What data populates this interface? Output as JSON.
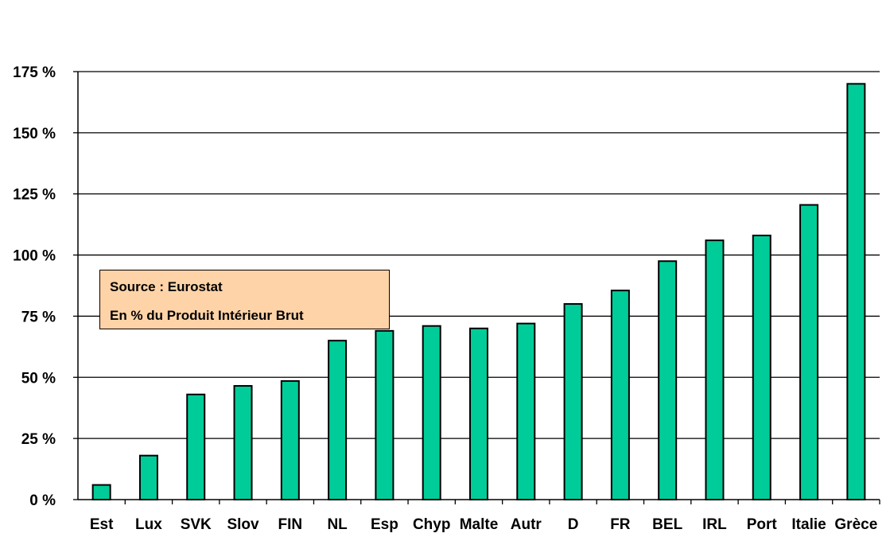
{
  "chart_data": {
    "type": "bar",
    "categories": [
      "Est",
      "Lux",
      "SVK",
      "Slov",
      "FIN",
      "NL",
      "Esp",
      "Chyp",
      "Malte",
      "Autr",
      "D",
      "FR",
      "BEL",
      "IRL",
      "Port",
      "Italie",
      "Grèce"
    ],
    "values": [
      6,
      18,
      43,
      46.5,
      48.5,
      65,
      69,
      71,
      70,
      72,
      80,
      85.5,
      97.5,
      106,
      108,
      120.5,
      170
    ],
    "ylim": [
      0,
      175
    ],
    "yticks": [
      0,
      25,
      50,
      75,
      100,
      125,
      150,
      175
    ],
    "ytick_labels": [
      "0 %",
      "25 %",
      "50 %",
      "75 %",
      "100 %",
      "125 %",
      "150 %",
      "175 %"
    ],
    "grid": true,
    "bar_color": "#00CC99",
    "bar_edge_color": "#000000"
  },
  "note": {
    "line1": "Source : Eurostat",
    "line2": "En % du Produit Intérieur Brut",
    "background": "#FFD3A8"
  }
}
